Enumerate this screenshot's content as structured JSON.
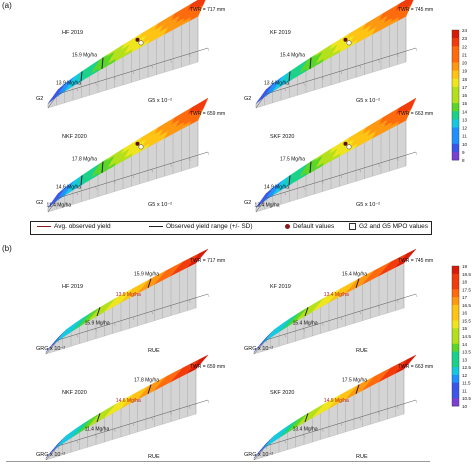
{
  "panel_labels": [
    "(a)",
    "(b)"
  ],
  "legend": {
    "items": [
      {
        "label": "Avg. observed yield",
        "color": "#222222",
        "kind": "line"
      },
      {
        "label": "Observed yield range (+/- SD)",
        "color": "#444444",
        "kind": "line"
      },
      {
        "label": "Default values",
        "color": "#8b1a1a",
        "kind": "dot"
      },
      {
        "label": "G2 and G5 MPO values",
        "color": "#ffffff",
        "kind": "square"
      }
    ]
  },
  "chart_data": [
    {
      "type": "surface",
      "panel": "a",
      "site": "HF 2019",
      "twr": "TWR = 717 mm",
      "yield_label": "15.9 Mg/ha",
      "yield_label_2": "13.9 Mg/ha",
      "x_label": "G5 x 10⁻²",
      "y_label": "G2",
      "default_point": [
        0.55,
        0.45
      ],
      "mpo_point": [
        0.6,
        0.55
      ],
      "colorbar_range": [
        8,
        24
      ]
    },
    {
      "type": "surface",
      "panel": "a",
      "site": "KF 2019",
      "twr": "TWR = 745 mm",
      "yield_label": "15.4 Mg/ha",
      "yield_label_2": "13.4 Mg/ha",
      "x_label": "G5 x 10⁻²",
      "y_label": "G2",
      "default_point": [
        0.55,
        0.45
      ],
      "mpo_point": [
        0.6,
        0.55
      ],
      "colorbar_range": [
        8,
        24
      ]
    },
    {
      "type": "surface",
      "panel": "a",
      "site": "NKF 2020",
      "twr": "TWR = 659 mm",
      "yield_label": "17.8 Mg/ha",
      "yield_label_2": "14.6 Mg/ha",
      "yield_label_3": "11.4 Mg/ha",
      "x_label": "G5 x 10⁻²",
      "y_label": "G2",
      "default_point": [
        0.55,
        0.45
      ],
      "mpo_point": [
        0.6,
        0.55
      ],
      "colorbar_range": [
        8,
        24
      ]
    },
    {
      "type": "surface",
      "panel": "a",
      "site": "SKF 2020",
      "twr": "TWR = 663 mm",
      "yield_label": "17.5 Mg/ha",
      "yield_label_2": "14.9 Mg/ha",
      "yield_label_3": "13.4 Mg/ha",
      "x_label": "G5 x 10⁻²",
      "y_label": "G2",
      "default_point": [
        0.55,
        0.45
      ],
      "mpo_point": [
        0.6,
        0.55
      ],
      "colorbar_range": [
        8,
        24
      ]
    },
    {
      "type": "surface",
      "panel": "b",
      "site": "HF 2019",
      "twr": "TWR = 717 mm",
      "yield_label": "15.9 Mg/ha",
      "yield_label_red": "13.9 Mg/ha",
      "yield_label_2": "15.9 Mg/ha",
      "x_label": "RUE",
      "y_label": "GRG x 10⁻²",
      "colorbar_range": [
        10,
        19
      ]
    },
    {
      "type": "surface",
      "panel": "b",
      "site": "KF 2019",
      "twr": "TWR = 745 mm",
      "yield_label": "15.4 Mg/ha",
      "yield_label_red": "13.4 Mg/ha",
      "yield_label_2": "15.4 Mg/ha",
      "x_label": "RUE",
      "y_label": "GRG x 10⁻²",
      "colorbar_range": [
        10,
        19
      ]
    },
    {
      "type": "surface",
      "panel": "b",
      "site": "NKF 2020",
      "twr": "TWR = 659 mm",
      "yield_label": "17.8 Mg/ha",
      "yield_label_red": "14.6 Mg/ha",
      "yield_label_2": "11.4 Mg/ha",
      "x_label": "RUE",
      "y_label": "GRG x 10⁻²",
      "colorbar_range": [
        10,
        19
      ]
    },
    {
      "type": "surface",
      "panel": "b",
      "site": "SKF 2020",
      "twr": "TWR = 663 mm",
      "yield_label": "17.5 Mg/ha",
      "yield_label_red": "14.9 Mg/ha",
      "yield_label_2": "13.4 Mg/ha",
      "x_label": "RUE",
      "y_label": "GRG x 10⁻²",
      "colorbar_range": [
        10,
        19
      ]
    }
  ],
  "colorbars": [
    {
      "panel": "a",
      "ticks": [
        24,
        23,
        22,
        21,
        20,
        19,
        18,
        17,
        16,
        15,
        14,
        13,
        12,
        11,
        10,
        9,
        8
      ]
    },
    {
      "panel": "b",
      "ticks": [
        19,
        18.5,
        18,
        17.5,
        17,
        16.5,
        16,
        15.5,
        15,
        14.5,
        14,
        13.5,
        13,
        12.5,
        12,
        11.5,
        11,
        10.5,
        10
      ]
    }
  ]
}
